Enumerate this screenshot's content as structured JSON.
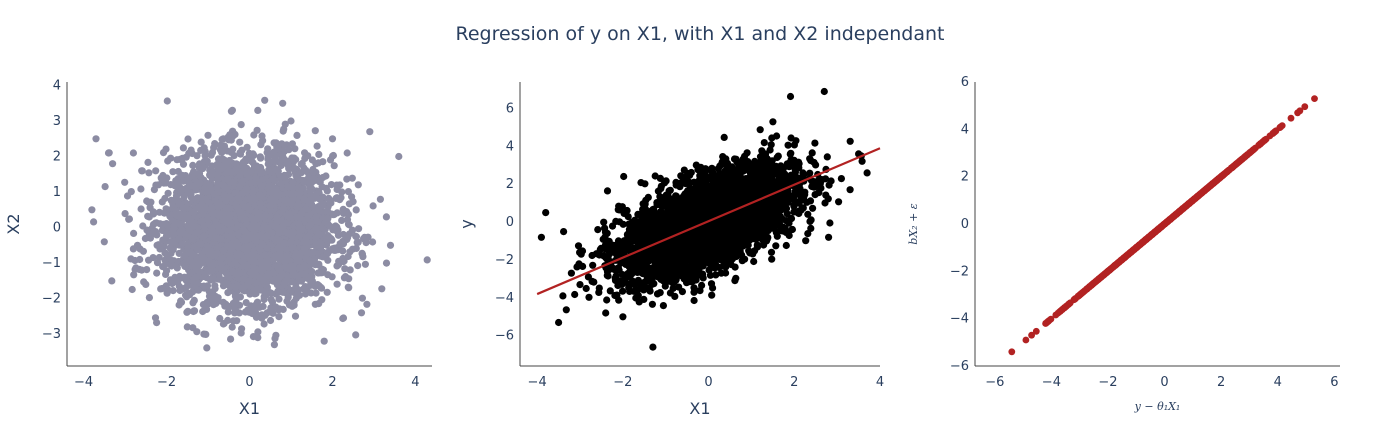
{
  "title": "Regression of y on X1, with X1 and X2 independant",
  "colors": {
    "scatter1": "#8c8ca3",
    "scatter2": "#000000",
    "fitline": "#b22222",
    "scatter3": "#b22222",
    "axis": "#444444"
  },
  "chart_data": [
    {
      "type": "scatter",
      "xlabel": "X1",
      "ylabel": "X2",
      "xlim": [
        -4.4,
        4.4
      ],
      "ylim": [
        -3.9,
        4.1
      ],
      "xticks": [
        "−4",
        "−2",
        "0",
        "2",
        "4"
      ],
      "yticks": [
        "−3",
        "−2",
        "−1",
        "0",
        "1",
        "2",
        "3",
        "4"
      ],
      "points": [
        [
          -3.8,
          0.5
        ],
        [
          -3.7,
          2.5
        ],
        [
          -3.5,
          -0.4
        ],
        [
          -3.4,
          2.1
        ],
        [
          -3.3,
          1.8
        ],
        [
          -2.8,
          2.1
        ],
        [
          -2.7,
          -0.5
        ],
        [
          -2.8,
          -0.6
        ],
        [
          -2.6,
          -1.2
        ],
        [
          -2.5,
          -1.6
        ],
        [
          -2.6,
          1.6
        ],
        [
          3.6,
          2.0
        ],
        [
          3.3,
          0.3
        ],
        [
          3.4,
          -0.5
        ],
        [
          2.9,
          2.7
        ],
        [
          2.7,
          -2.4
        ],
        [
          -1.5,
          -2.8
        ],
        [
          -1.1,
          -3.0
        ],
        [
          0.2,
          -3.1
        ],
        [
          0.6,
          -3.3
        ],
        [
          1.8,
          -3.2
        ],
        [
          0.8,
          3.5
        ],
        [
          0.2,
          3.3
        ],
        [
          -0.2,
          2.9
        ],
        [
          1.0,
          3.0
        ],
        [
          -1.0,
          2.6
        ],
        [
          2.0,
          2.5
        ]
      ],
      "cloud": {
        "mean": [
          0,
          0
        ],
        "std": [
          1,
          1
        ],
        "n": 4000
      }
    },
    {
      "type": "scatter",
      "xlabel": "X1",
      "ylabel": "y",
      "xlim": [
        -4.4,
        4.0
      ],
      "ylim": [
        -7.6,
        7.4
      ],
      "xticks": [
        "−4",
        "−2",
        "0",
        "2",
        "4"
      ],
      "yticks": [
        "−6",
        "−4",
        "−2",
        "0",
        "2",
        "4",
        "6"
      ],
      "points": [
        [
          -3.8,
          0.5
        ],
        [
          -3.9,
          -0.8
        ],
        [
          -3.2,
          -2.7
        ],
        [
          -3.5,
          -5.3
        ],
        [
          -3.0,
          -3.3
        ],
        [
          -1.3,
          -6.6
        ],
        [
          2.7,
          6.9
        ],
        [
          3.5,
          3.6
        ],
        [
          3.7,
          2.6
        ],
        [
          2.8,
          -0.8
        ],
        [
          3.1,
          2.3
        ],
        [
          -2.4,
          -4.8
        ],
        [
          -2.0,
          -5.0
        ],
        [
          1.3,
          4.2
        ],
        [
          1.5,
          5.3
        ],
        [
          2.2,
          2.6
        ],
        [
          -3.4,
          -3.9
        ]
      ],
      "cloud": {
        "mean": [
          0,
          0
        ],
        "std": [
          1,
          1.45
        ],
        "corr": 0.6,
        "n": 4000
      },
      "fit_line": {
        "x": [
          -4.0,
          4.0
        ],
        "y": [
          -3.8,
          3.9
        ]
      }
    },
    {
      "type": "scatter",
      "xlabel": "y − θ₁X₁",
      "ylabel": "bX₂ + ε",
      "xlim": [
        -6.7,
        6.2
      ],
      "ylim": [
        -6.0,
        6.0
      ],
      "xticks": [
        "−6",
        "−4",
        "−2",
        "0",
        "2",
        "4",
        "6"
      ],
      "yticks": [
        "−6",
        "−4",
        "−2",
        "0",
        "2",
        "4",
        "6"
      ],
      "points": [
        [
          -5.4,
          -5.4
        ],
        [
          -4.9,
          -4.9
        ],
        [
          -4.7,
          -4.7
        ],
        [
          5.3,
          5.3
        ],
        [
          4.7,
          4.7
        ]
      ],
      "cloud": {
        "line": "y = x",
        "std": 1.5,
        "n": 1500
      }
    }
  ]
}
